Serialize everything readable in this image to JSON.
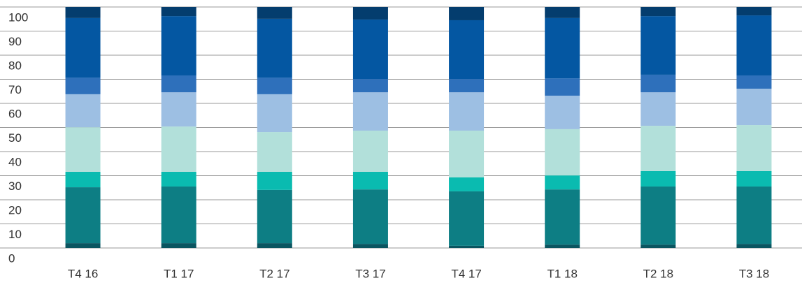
{
  "chart_data": {
    "type": "stacked_bar",
    "categories": [
      "T4 16",
      "T1 17",
      "T2 17",
      "T3 17",
      "T4 17",
      "T1 18",
      "T2 18",
      "T3 18"
    ],
    "series": [
      {
        "color": "#0a5560",
        "values": [
          2,
          2,
          2,
          1.7,
          0.9,
          1.4,
          1.4,
          1.7
        ]
      },
      {
        "color": "#0d7e84",
        "values": [
          23.2,
          23.5,
          22.1,
          22.6,
          22.6,
          22.9,
          24.1,
          23.8
        ]
      },
      {
        "color": "#0abbb0",
        "values": [
          6.4,
          6.1,
          7.5,
          7.3,
          5.8,
          5.8,
          6.4,
          6.4
        ]
      },
      {
        "color": "#b2e0da",
        "values": [
          18.5,
          18.8,
          16.5,
          17.1,
          19.4,
          19.2,
          18.8,
          19.1
        ]
      },
      {
        "color": "#9dbfe3",
        "values": [
          13.7,
          14.2,
          15.7,
          15.9,
          15.9,
          13.9,
          13.9,
          15.1
        ]
      },
      {
        "color": "#2e70bb",
        "values": [
          6.9,
          7.0,
          6.9,
          5.5,
          5.5,
          7.2,
          7.3,
          5.5
        ]
      },
      {
        "color": "#0457a2",
        "values": [
          24.7,
          24.6,
          24.4,
          24.7,
          24.4,
          25,
          24.3,
          24.9
        ]
      },
      {
        "color": "#043d6e",
        "values": [
          4.6,
          3.8,
          4.9,
          5.2,
          5.5,
          4.6,
          3.8,
          3.5
        ]
      }
    ],
    "ylim": [
      0,
      100
    ],
    "yticks": [
      0,
      10,
      20,
      30,
      40,
      50,
      60,
      70,
      80,
      90,
      100
    ],
    "grid": true
  }
}
